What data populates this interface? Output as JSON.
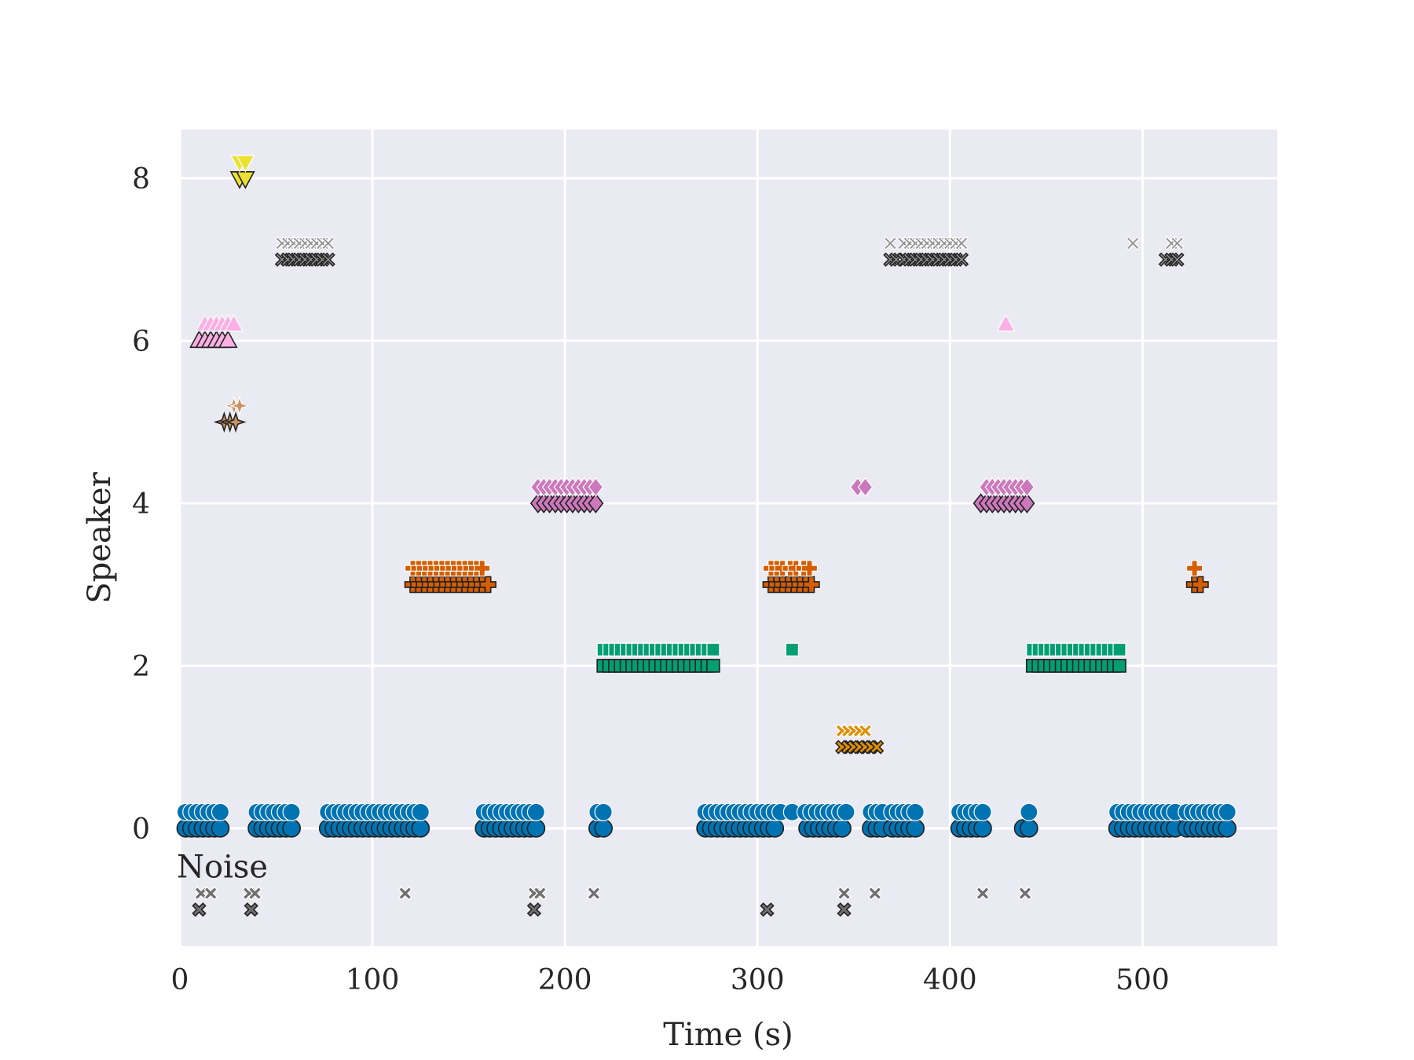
{
  "chart_data": {
    "type": "scatter",
    "title": "",
    "xlabel": "Time (s)",
    "ylabel": "Speaker",
    "xlim": [
      0,
      570
    ],
    "ylim": [
      -1.45,
      8.6
    ],
    "xticks": [
      0,
      100,
      200,
      300,
      400,
      500
    ],
    "xtick_labels": [
      "0",
      "100",
      "200",
      "300",
      "400",
      "500"
    ],
    "yticks": [
      0,
      2,
      4,
      6,
      8
    ],
    "ytick_labels": [
      "0",
      "2",
      "4",
      "6",
      "8"
    ],
    "grid": true,
    "legend": "none",
    "annotations": [
      {
        "text": "Noise",
        "x": 0,
        "y": -0.47
      }
    ],
    "upper_row_offset": 0.2,
    "colors": {
      "background": "#eaeaf2",
      "grid": "#ffffff",
      "outline_lower": "#222222",
      "outline_upper": "#ffffff"
    },
    "series": [
      {
        "speaker": 0,
        "marker": "circle",
        "color": "#0173b2",
        "size": 11,
        "upper_x": [
          3,
          6,
          9,
          12,
          15,
          18,
          21,
          40,
          43,
          46,
          49,
          52,
          55,
          58,
          77,
          80,
          83,
          86,
          89,
          92,
          95,
          98,
          101,
          104,
          107,
          110,
          113,
          116,
          119,
          122,
          125,
          158,
          161,
          164,
          167,
          170,
          173,
          176,
          179,
          182,
          185,
          217,
          220,
          273,
          276,
          279,
          282,
          285,
          288,
          291,
          294,
          297,
          300,
          303,
          306,
          309,
          312,
          318,
          325,
          328,
          331,
          334,
          337,
          340,
          343,
          346,
          359,
          362,
          365,
          370,
          373,
          376,
          379,
          382,
          405,
          408,
          411,
          414,
          417,
          441,
          487,
          490,
          493,
          496,
          499,
          502,
          505,
          508,
          511,
          514,
          517,
          523,
          526,
          529,
          532,
          535,
          538,
          541,
          544
        ],
        "lower_x": [
          3,
          6,
          9,
          12,
          15,
          18,
          21,
          40,
          43,
          46,
          49,
          52,
          55,
          58,
          77,
          80,
          83,
          86,
          89,
          92,
          95,
          98,
          101,
          104,
          107,
          110,
          113,
          116,
          119,
          122,
          125,
          158,
          161,
          164,
          167,
          170,
          173,
          176,
          179,
          182,
          185,
          217,
          220,
          273,
          276,
          279,
          282,
          285,
          288,
          291,
          294,
          297,
          300,
          303,
          306,
          309,
          326,
          329,
          332,
          335,
          338,
          341,
          344,
          359,
          362,
          365,
          370,
          373,
          376,
          379,
          382,
          405,
          408,
          411,
          414,
          417,
          438,
          441,
          487,
          490,
          493,
          496,
          499,
          502,
          505,
          508,
          511,
          514,
          517,
          523,
          526,
          529,
          532,
          535,
          538,
          541,
          544
        ]
      },
      {
        "speaker": 1,
        "marker": "x",
        "color": "#de8f05",
        "size": 10,
        "upper_x": [
          344,
          347,
          350,
          353,
          356
        ],
        "lower_x": [
          344,
          347,
          350,
          353,
          356,
          359,
          362
        ]
      },
      {
        "speaker": 2,
        "marker": "square",
        "color": "#029e73",
        "size": 8,
        "upper_x": [
          220,
          223,
          226,
          229,
          232,
          235,
          238,
          241,
          244,
          247,
          250,
          253,
          256,
          259,
          262,
          265,
          268,
          271,
          274,
          277,
          318,
          443,
          446,
          449,
          452,
          455,
          458,
          461,
          464,
          467,
          470,
          473,
          476,
          479,
          482,
          485,
          488
        ],
        "lower_x": [
          220,
          223,
          226,
          229,
          232,
          235,
          238,
          241,
          244,
          247,
          250,
          253,
          256,
          259,
          262,
          265,
          268,
          271,
          274,
          277,
          443,
          446,
          449,
          452,
          455,
          458,
          461,
          464,
          467,
          470,
          473,
          476,
          479,
          482,
          485,
          488
        ]
      },
      {
        "speaker": 3,
        "marker": "plus",
        "color": "#d55e00",
        "size": 10,
        "upper_x": [
          121,
          124,
          127,
          130,
          133,
          136,
          139,
          142,
          145,
          148,
          151,
          154,
          157,
          307,
          310,
          313,
          317,
          320,
          324,
          327,
          527
        ],
        "lower_x": [
          121,
          124,
          127,
          130,
          133,
          136,
          139,
          142,
          145,
          148,
          151,
          154,
          157,
          160,
          307,
          310,
          313,
          316,
          319,
          322,
          325,
          328,
          527,
          530
        ]
      },
      {
        "speaker": 4,
        "marker": "diamond",
        "color": "#cc78bc",
        "size": 10,
        "upper_x": [
          186,
          189,
          192,
          195,
          198,
          201,
          204,
          207,
          210,
          213,
          216,
          352,
          356,
          419,
          422,
          425,
          428,
          431,
          434,
          437,
          440
        ],
        "lower_x": [
          186,
          189,
          192,
          195,
          198,
          201,
          204,
          207,
          210,
          213,
          216,
          416,
          419,
          422,
          425,
          428,
          431,
          434,
          437,
          440
        ]
      },
      {
        "speaker": 5,
        "marker": "star",
        "color": "#ca9161",
        "size": 10,
        "upper_x": [
          28,
          31
        ],
        "lower_x": [
          23,
          26,
          29
        ]
      },
      {
        "speaker": 6,
        "marker": "triangle-up",
        "color": "#fbafe4",
        "size": 11,
        "upper_x": [
          13,
          16,
          19,
          22,
          25,
          28,
          429
        ],
        "lower_x": [
          10,
          13,
          16,
          19,
          22,
          25
        ]
      },
      {
        "speaker": 7,
        "marker": "x-thin",
        "color": "#949494",
        "size": 10,
        "upper_x": [
          53,
          56,
          59,
          62,
          65,
          68,
          71,
          74,
          77,
          369,
          376,
          379,
          382,
          385,
          388,
          391,
          394,
          397,
          400,
          403,
          406,
          495,
          515,
          518
        ],
        "lower_x": [
          53,
          56,
          59,
          62,
          65,
          68,
          71,
          74,
          77,
          369,
          372,
          376,
          379,
          382,
          385,
          388,
          391,
          394,
          397,
          400,
          403,
          406,
          512,
          515,
          518
        ]
      },
      {
        "speaker": 8,
        "marker": "triangle-down",
        "color": "#ece133",
        "size": 11,
        "upper_x": [
          31,
          34
        ],
        "lower_x": [
          31,
          34
        ]
      },
      {
        "speaker": -1,
        "label": "Noise",
        "marker": "x",
        "color": "#707070",
        "size": 10,
        "upper_y": -0.8,
        "lower_y": -1.0,
        "upper_x": [
          11,
          16,
          36,
          39,
          117,
          184,
          187,
          215,
          345,
          361,
          417,
          439
        ],
        "lower_x": [
          10,
          37,
          184,
          305,
          345
        ]
      }
    ]
  }
}
